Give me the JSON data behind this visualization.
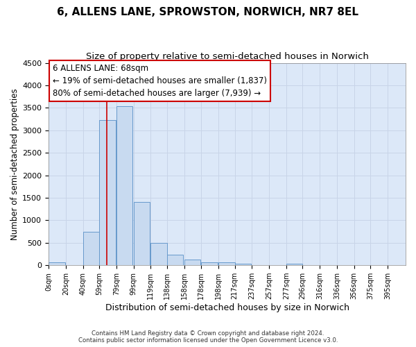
{
  "title": "6, ALLENS LANE, SPROWSTON, NORWICH, NR7 8EL",
  "subtitle": "Size of property relative to semi-detached houses in Norwich",
  "xlabel": "Distribution of semi-detached houses by size in Norwich",
  "ylabel": "Number of semi-detached properties",
  "bar_left_edges": [
    0,
    20,
    40,
    59,
    79,
    99,
    119,
    138,
    158,
    178,
    198,
    217,
    237,
    257,
    277,
    296,
    316,
    336,
    356,
    375,
    395
  ],
  "bar_heights": [
    70,
    0,
    750,
    3230,
    3530,
    1400,
    500,
    230,
    130,
    70,
    60,
    40,
    0,
    0,
    40,
    0,
    0,
    0,
    0,
    0,
    0
  ],
  "bar_color": "#c8daf0",
  "bar_edgecolor": "#6699cc",
  "ylim": [
    0,
    4500
  ],
  "yticks": [
    0,
    500,
    1000,
    1500,
    2000,
    2500,
    3000,
    3500,
    4000,
    4500
  ],
  "xtick_labels": [
    "0sqm",
    "20sqm",
    "40sqm",
    "59sqm",
    "79sqm",
    "99sqm",
    "119sqm",
    "138sqm",
    "158sqm",
    "178sqm",
    "198sqm",
    "217sqm",
    "237sqm",
    "257sqm",
    "277sqm",
    "296sqm",
    "316sqm",
    "336sqm",
    "356sqm",
    "375sqm",
    "395sqm"
  ],
  "property_size": 68,
  "property_line_color": "#cc0000",
  "annotation_line1": "6 ALLENS LANE: 68sqm",
  "annotation_line2": "← 19% of semi-detached houses are smaller (1,837)",
  "annotation_line3": "80% of semi-detached houses are larger (7,939) →",
  "annotation_box_color": "#ffffff",
  "annotation_box_edgecolor": "#cc0000",
  "grid_color": "#c8d4e8",
  "background_color": "#dce8f8",
  "footer_text": "Contains HM Land Registry data © Crown copyright and database right 2024.\nContains public sector information licensed under the Open Government Licence v3.0.",
  "title_fontsize": 11,
  "subtitle_fontsize": 9.5,
  "xlabel_fontsize": 9,
  "ylabel_fontsize": 8.5,
  "annotation_fontsize": 8.5
}
